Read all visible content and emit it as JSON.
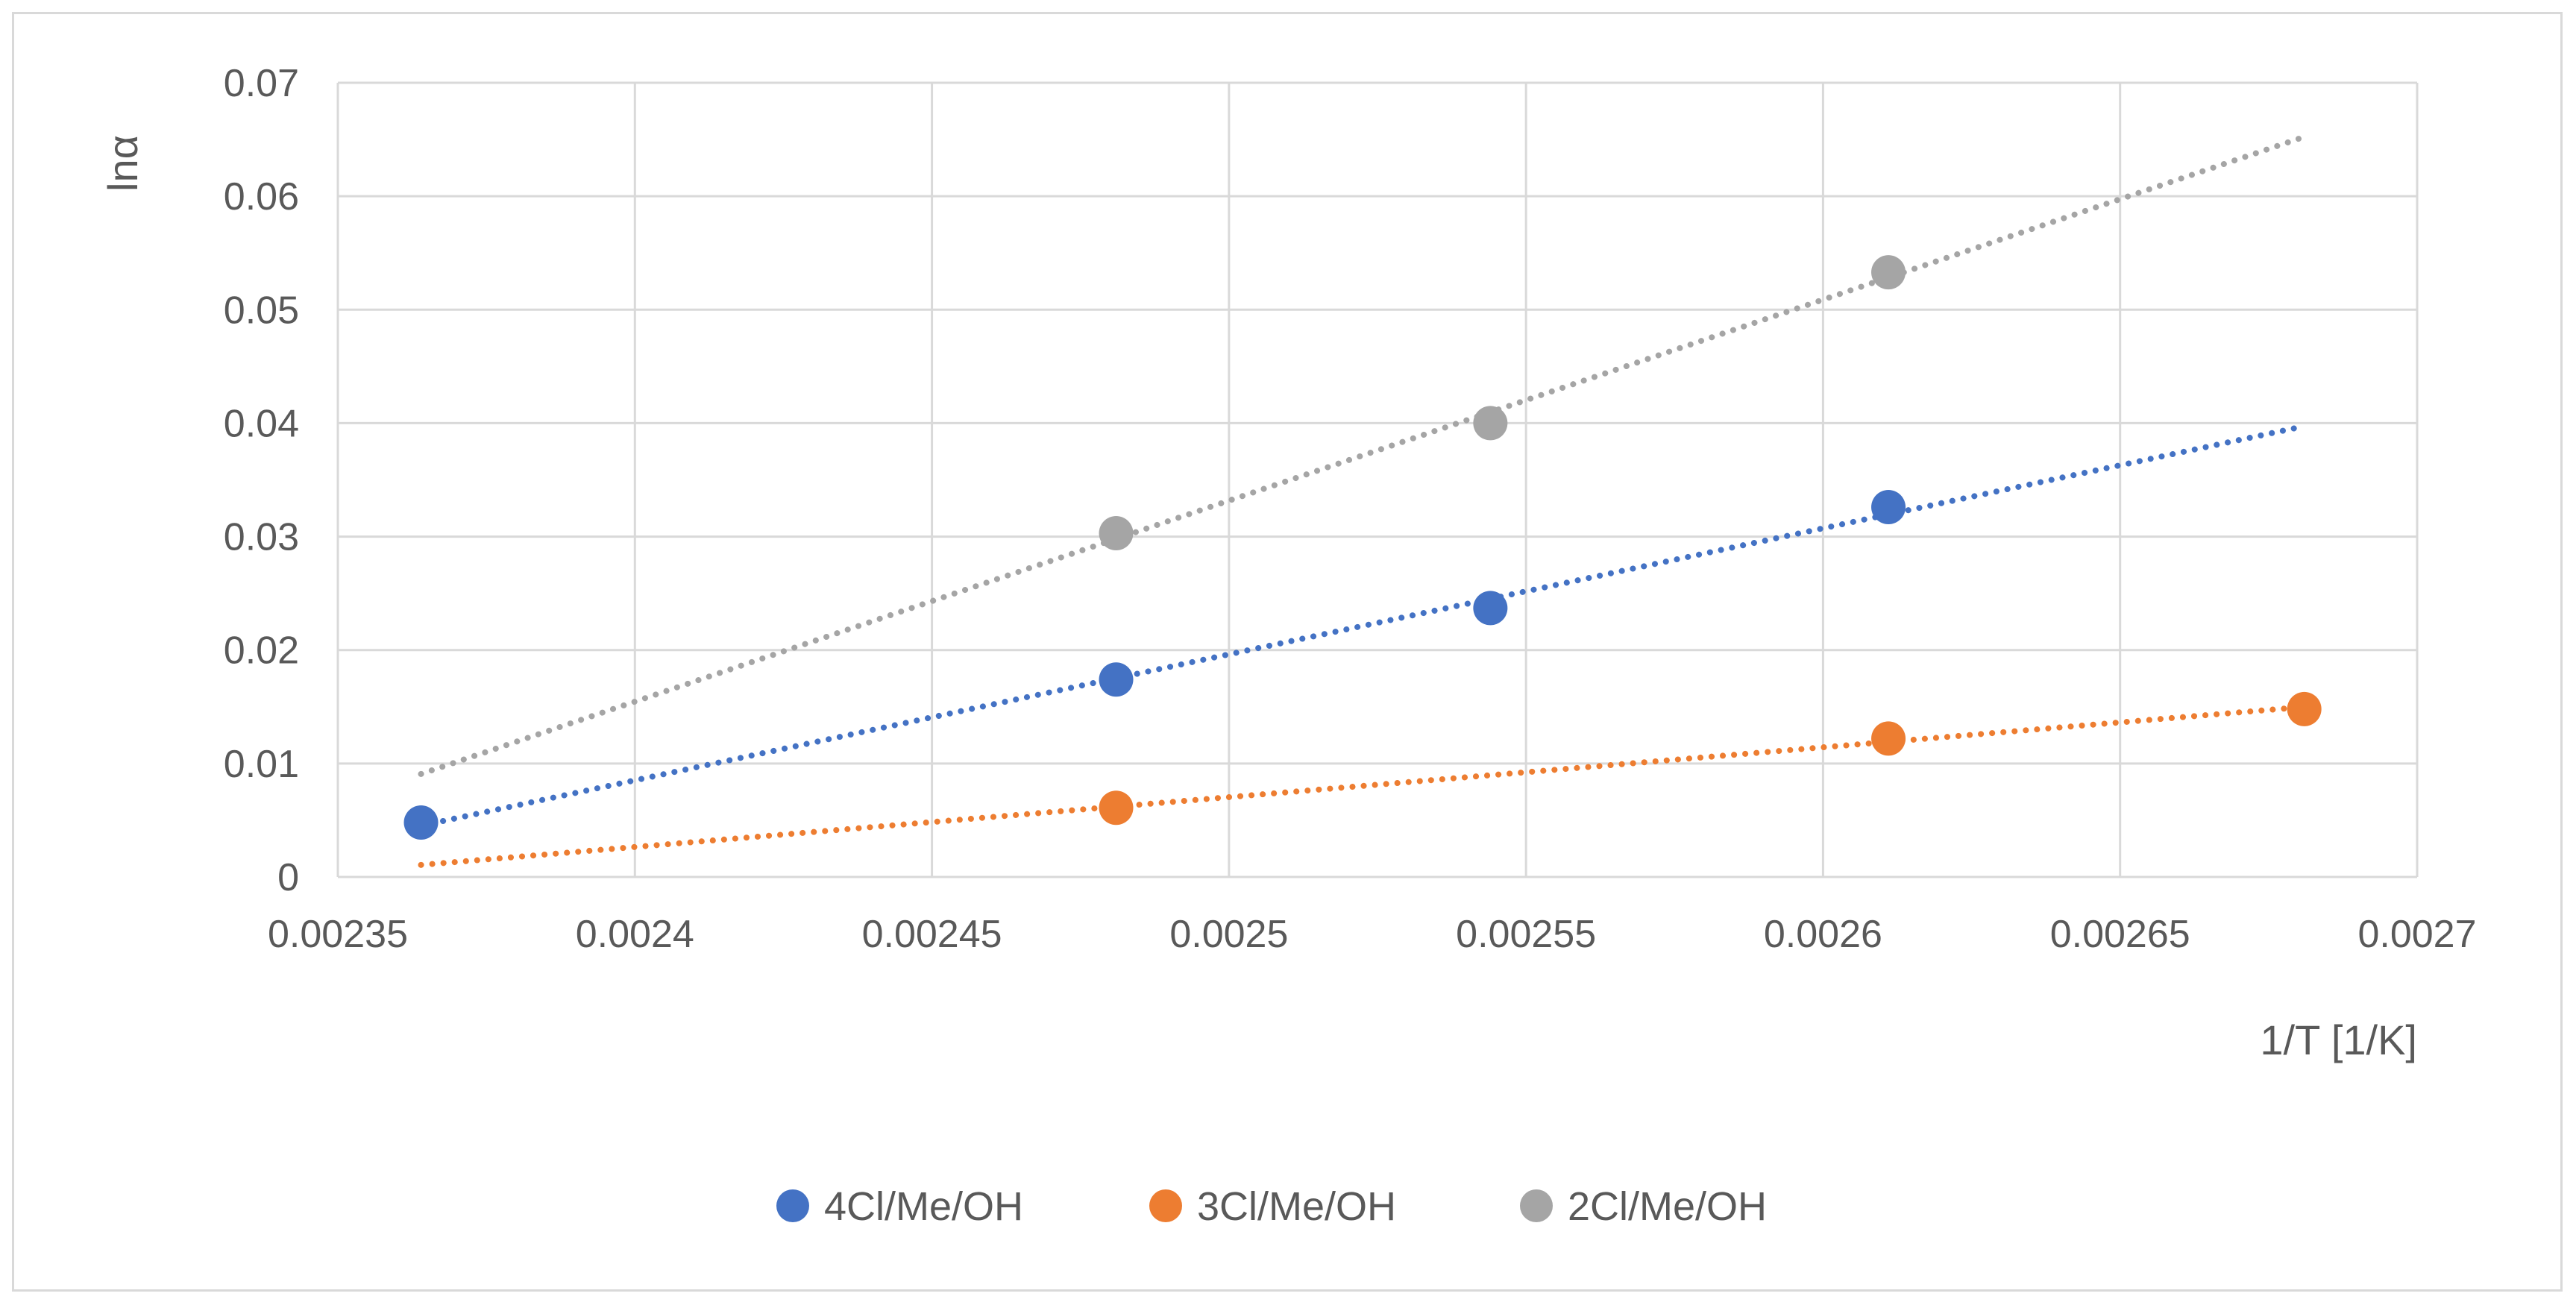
{
  "chart_data": {
    "type": "scatter",
    "title": "",
    "xlabel": "1/T [1/K]",
    "ylabel": "lnα",
    "xlim": [
      0.00235,
      0.0027
    ],
    "ylim": [
      0,
      0.07
    ],
    "x_ticks": [
      0.00235,
      0.0024,
      0.00245,
      0.0025,
      0.00255,
      0.0026,
      0.00265,
      0.0027
    ],
    "x_tick_labels": [
      "0.00235",
      "0.0024",
      "0.00245",
      "0.0025",
      "0.00255",
      "0.0026",
      "0.00265",
      "0.0027"
    ],
    "y_ticks": [
      0,
      0.01,
      0.02,
      0.03,
      0.04,
      0.05,
      0.06,
      0.07
    ],
    "y_tick_labels": [
      "0",
      "0.01",
      "0.02",
      "0.03",
      "0.04",
      "0.05",
      "0.06",
      "0.07"
    ],
    "grid": true,
    "legend_position": "bottom",
    "series": [
      {
        "name": "4Cl/Me/OH",
        "color": "#4472c4",
        "x": [
          0.002364,
          0.002481,
          0.002544,
          0.002611
        ],
        "y": [
          0.0048,
          0.0174,
          0.0237,
          0.0326
        ],
        "trendline": {
          "style": "dotted",
          "x_start": 0.002364,
          "x_end": 0.002681
        }
      },
      {
        "name": "3Cl/Me/OH",
        "color": "#ed7d31",
        "x": [
          0.002481,
          0.002611,
          0.002681
        ],
        "y": [
          0.0061,
          0.0122,
          0.0148
        ],
        "trendline": {
          "style": "dotted",
          "x_start": 0.002364,
          "x_end": 0.002681
        }
      },
      {
        "name": "2Cl/Me/OH",
        "color": "#a5a5a5",
        "x": [
          0.002481,
          0.002544,
          0.002611
        ],
        "y": [
          0.0303,
          0.04,
          0.0533
        ],
        "trendline": {
          "style": "dotted",
          "x_start": 0.002364,
          "x_end": 0.002681
        }
      }
    ]
  }
}
